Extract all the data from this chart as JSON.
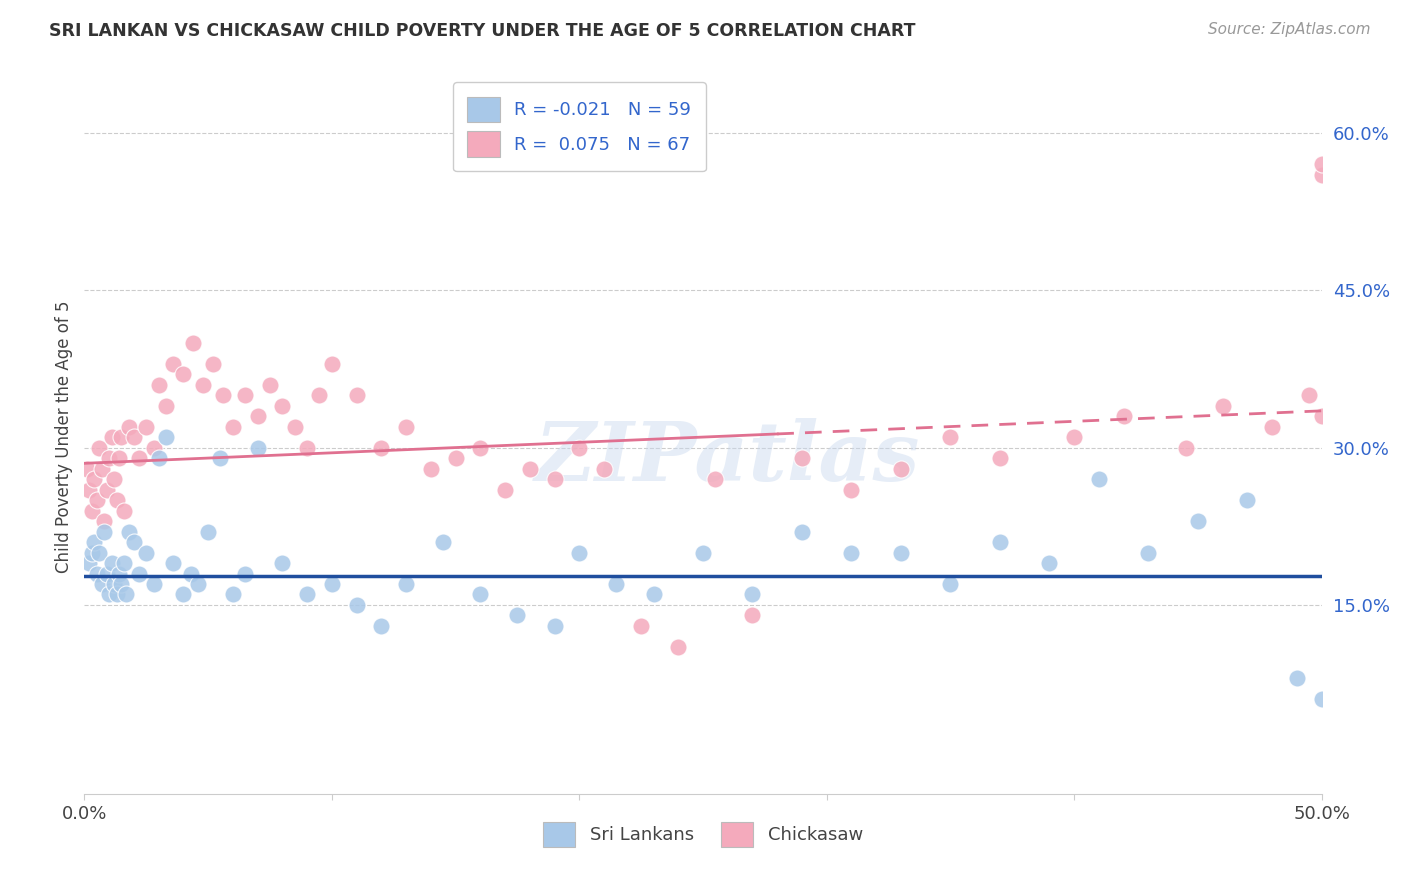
{
  "title": "SRI LANKAN VS CHICKASAW CHILD POVERTY UNDER THE AGE OF 5 CORRELATION CHART",
  "source": "Source: ZipAtlas.com",
  "ylabel": "Child Poverty Under the Age of 5",
  "right_yticks": [
    "15.0%",
    "30.0%",
    "45.0%",
    "60.0%"
  ],
  "right_ytick_vals": [
    0.15,
    0.3,
    0.45,
    0.6
  ],
  "xlim": [
    0.0,
    0.5
  ],
  "ylim": [
    -0.03,
    0.65
  ],
  "sri_lankan_color": "#a8c8e8",
  "chickasaw_color": "#f4aabc",
  "sri_lankan_label": "Sri Lankans",
  "chickasaw_label": "Chickasaw",
  "sri_lankan_R": "-0.021",
  "sri_lankan_N": "59",
  "chickasaw_R": "0.075",
  "chickasaw_N": "67",
  "legend_R_color": "#3366cc",
  "watermark": "ZIPatlas",
  "sl_line_color": "#1f4e9e",
  "ch_line_color": "#e07090",
  "sl_line_y": 0.178,
  "ch_line_start": 0.285,
  "ch_line_end": 0.335,
  "sri_lankan_x": [
    0.002,
    0.003,
    0.004,
    0.005,
    0.006,
    0.007,
    0.008,
    0.009,
    0.01,
    0.011,
    0.012,
    0.013,
    0.014,
    0.015,
    0.016,
    0.017,
    0.018,
    0.02,
    0.022,
    0.025,
    0.028,
    0.03,
    0.033,
    0.036,
    0.04,
    0.043,
    0.046,
    0.05,
    0.055,
    0.06,
    0.065,
    0.07,
    0.08,
    0.09,
    0.1,
    0.11,
    0.12,
    0.13,
    0.145,
    0.16,
    0.175,
    0.19,
    0.2,
    0.215,
    0.23,
    0.25,
    0.27,
    0.29,
    0.31,
    0.33,
    0.35,
    0.37,
    0.39,
    0.41,
    0.43,
    0.45,
    0.47,
    0.49,
    0.5
  ],
  "sri_lankan_y": [
    0.19,
    0.2,
    0.21,
    0.18,
    0.2,
    0.17,
    0.22,
    0.18,
    0.16,
    0.19,
    0.17,
    0.16,
    0.18,
    0.17,
    0.19,
    0.16,
    0.22,
    0.21,
    0.18,
    0.2,
    0.17,
    0.29,
    0.31,
    0.19,
    0.16,
    0.18,
    0.17,
    0.22,
    0.29,
    0.16,
    0.18,
    0.3,
    0.19,
    0.16,
    0.17,
    0.15,
    0.13,
    0.17,
    0.21,
    0.16,
    0.14,
    0.13,
    0.2,
    0.17,
    0.16,
    0.2,
    0.16,
    0.22,
    0.2,
    0.2,
    0.17,
    0.21,
    0.19,
    0.27,
    0.2,
    0.23,
    0.25,
    0.08,
    0.06
  ],
  "chickasaw_x": [
    0.001,
    0.002,
    0.003,
    0.004,
    0.005,
    0.006,
    0.007,
    0.008,
    0.009,
    0.01,
    0.011,
    0.012,
    0.013,
    0.014,
    0.015,
    0.016,
    0.018,
    0.02,
    0.022,
    0.025,
    0.028,
    0.03,
    0.033,
    0.036,
    0.04,
    0.044,
    0.048,
    0.052,
    0.056,
    0.06,
    0.065,
    0.07,
    0.075,
    0.08,
    0.085,
    0.09,
    0.095,
    0.1,
    0.11,
    0.12,
    0.13,
    0.14,
    0.15,
    0.16,
    0.17,
    0.18,
    0.19,
    0.2,
    0.21,
    0.225,
    0.24,
    0.255,
    0.27,
    0.29,
    0.31,
    0.33,
    0.35,
    0.37,
    0.4,
    0.42,
    0.445,
    0.46,
    0.48,
    0.495,
    0.5,
    0.5,
    0.5
  ],
  "chickasaw_y": [
    0.28,
    0.26,
    0.24,
    0.27,
    0.25,
    0.3,
    0.28,
    0.23,
    0.26,
    0.29,
    0.31,
    0.27,
    0.25,
    0.29,
    0.31,
    0.24,
    0.32,
    0.31,
    0.29,
    0.32,
    0.3,
    0.36,
    0.34,
    0.38,
    0.37,
    0.4,
    0.36,
    0.38,
    0.35,
    0.32,
    0.35,
    0.33,
    0.36,
    0.34,
    0.32,
    0.3,
    0.35,
    0.38,
    0.35,
    0.3,
    0.32,
    0.28,
    0.29,
    0.3,
    0.26,
    0.28,
    0.27,
    0.3,
    0.28,
    0.13,
    0.11,
    0.27,
    0.14,
    0.29,
    0.26,
    0.28,
    0.31,
    0.29,
    0.31,
    0.33,
    0.3,
    0.34,
    0.32,
    0.35,
    0.33,
    0.56,
    0.57
  ]
}
